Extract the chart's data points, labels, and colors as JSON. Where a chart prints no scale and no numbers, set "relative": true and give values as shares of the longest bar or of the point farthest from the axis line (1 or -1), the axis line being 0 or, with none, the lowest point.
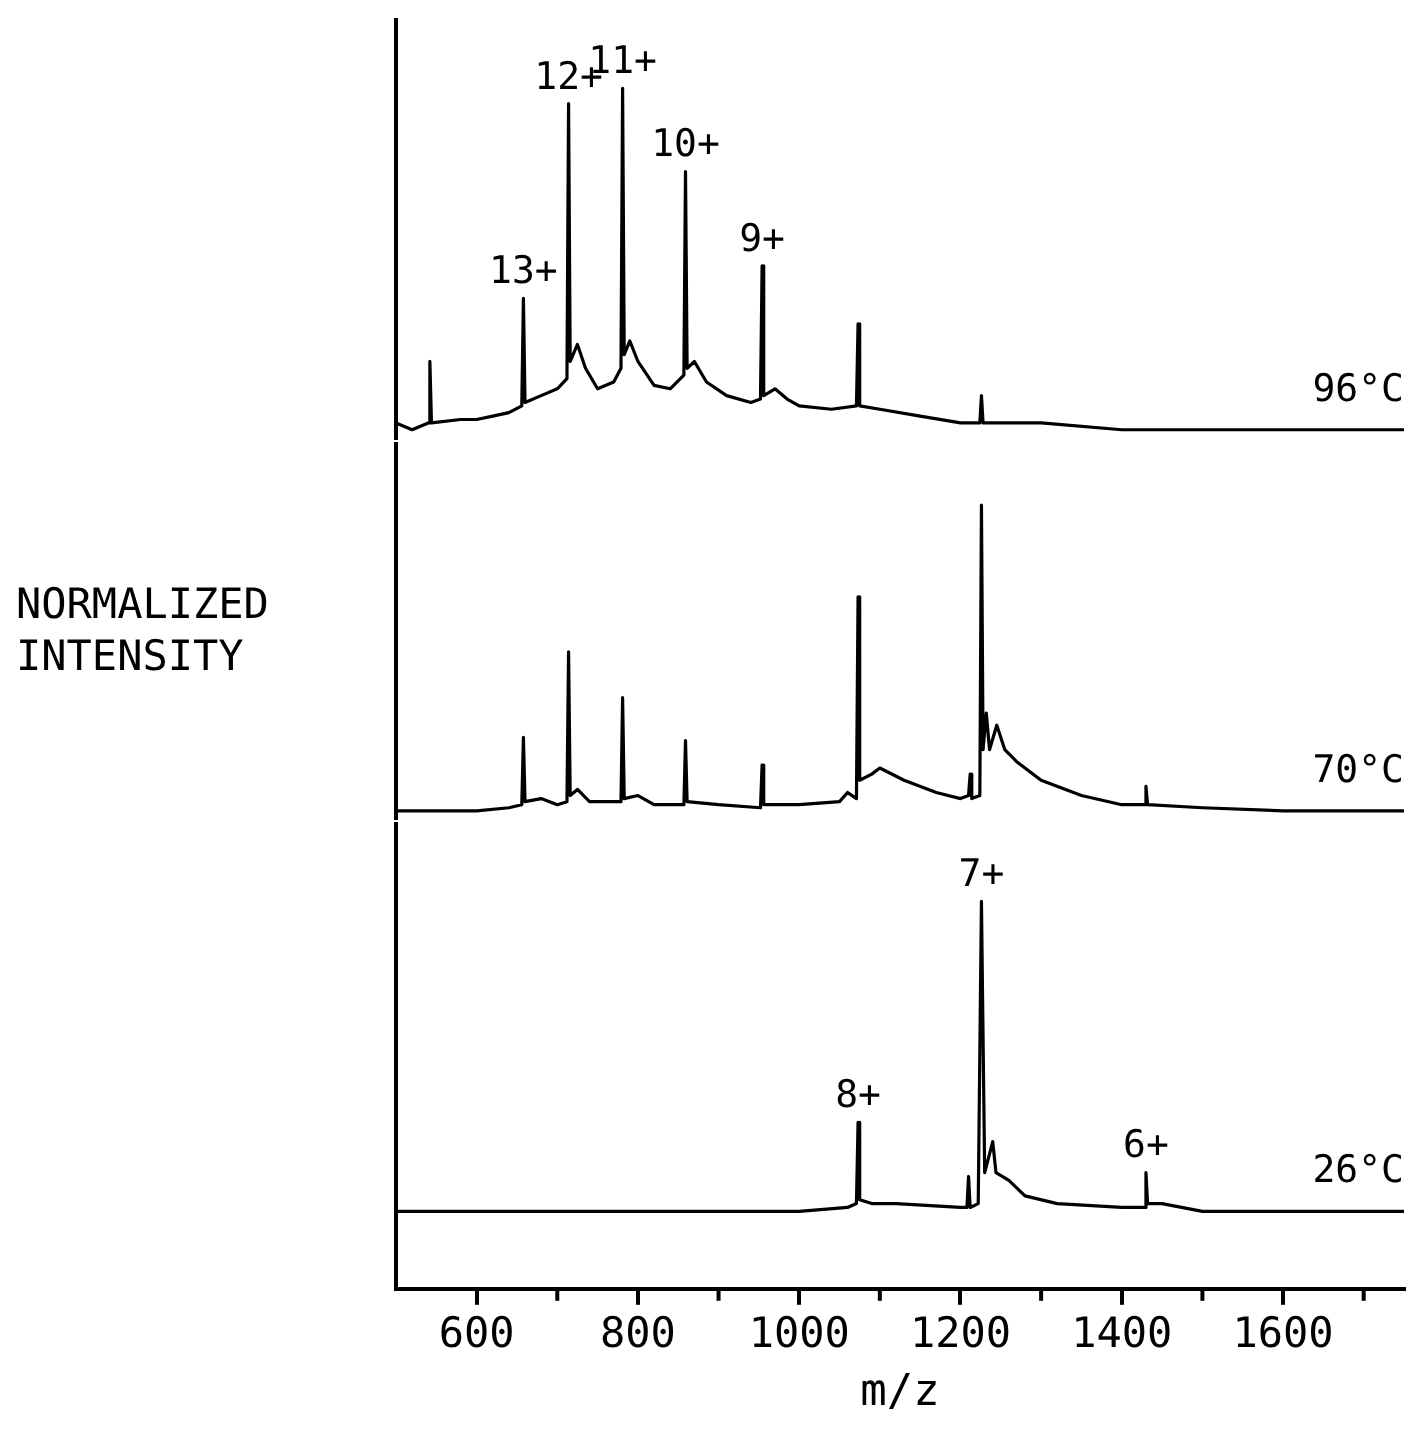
{
  "chart_data": [
    {
      "type": "line",
      "relative": true,
      "xlim": [
        500,
        1750
      ],
      "tick_labels": false,
      "marker": "none",
      "series": [
        {
          "name": "96°C",
          "color": "#000000",
          "x": [
            500,
            520,
            540,
            542,
            544,
            580,
            600,
            620,
            640,
            656,
            658,
            660,
            680,
            700,
            712,
            714,
            716,
            725,
            735,
            750,
            770,
            779,
            781,
            783,
            790,
            800,
            820,
            840,
            857,
            859,
            861,
            870,
            885,
            910,
            940,
            952,
            954,
            956,
            970,
            985,
            1000,
            1040,
            1071,
            1073,
            1075,
            1100,
            1150,
            1200,
            1224,
            1226,
            1228,
            1300,
            1400,
            1500,
            1600,
            1750
          ],
          "values": [
            0.02,
            0.0,
            0.02,
            0.2,
            0.02,
            0.03,
            0.03,
            0.04,
            0.05,
            0.07,
            0.385,
            0.08,
            0.1,
            0.12,
            0.15,
            0.955,
            0.2,
            0.25,
            0.18,
            0.12,
            0.14,
            0.18,
            1.0,
            0.22,
            0.26,
            0.2,
            0.13,
            0.12,
            0.16,
            0.756,
            0.18,
            0.2,
            0.14,
            0.1,
            0.08,
            0.09,
            0.48,
            0.1,
            0.12,
            0.09,
            0.07,
            0.06,
            0.07,
            0.31,
            0.07,
            0.06,
            0.04,
            0.02,
            0.02,
            0.1,
            0.02,
            0.02,
            0.0,
            0.0,
            0.0,
            0.0
          ]
        }
      ],
      "annotations": [
        {
          "text": "13+",
          "x": 658,
          "y": 0.385
        },
        {
          "text": "12+",
          "x": 714,
          "y": 0.955
        },
        {
          "text": "11+",
          "x": 781,
          "y": 1.0
        },
        {
          "text": "10+",
          "x": 859,
          "y": 0.756
        },
        {
          "text": "9+",
          "x": 954,
          "y": 0.48
        }
      ]
    },
    {
      "type": "line",
      "relative": true,
      "xlim": [
        500,
        1750
      ],
      "tick_labels": false,
      "marker": "none",
      "ylabel": "NORMALIZED INTENSITY",
      "series": [
        {
          "name": "70°C",
          "color": "#000000",
          "x": [
            500,
            600,
            640,
            656,
            658,
            660,
            680,
            700,
            712,
            714,
            716,
            725,
            740,
            779,
            781,
            783,
            800,
            820,
            857,
            859,
            861,
            900,
            952,
            954,
            956,
            1000,
            1050,
            1060,
            1071,
            1073,
            1075,
            1090,
            1100,
            1130,
            1170,
            1200,
            1210,
            1212,
            1214,
            1224,
            1226,
            1228,
            1232,
            1236,
            1245,
            1255,
            1270,
            1300,
            1350,
            1400,
            1428,
            1430,
            1432,
            1500,
            1600,
            1750
          ],
          "values": [
            0.0,
            0.0,
            0.01,
            0.02,
            0.24,
            0.03,
            0.04,
            0.02,
            0.03,
            0.52,
            0.05,
            0.07,
            0.03,
            0.03,
            0.37,
            0.04,
            0.05,
            0.02,
            0.02,
            0.23,
            0.03,
            0.02,
            0.01,
            0.15,
            0.02,
            0.02,
            0.03,
            0.06,
            0.04,
            0.7,
            0.1,
            0.12,
            0.14,
            0.1,
            0.06,
            0.04,
            0.05,
            0.12,
            0.04,
            0.05,
            1.0,
            0.2,
            0.32,
            0.2,
            0.28,
            0.2,
            0.16,
            0.1,
            0.05,
            0.02,
            0.02,
            0.08,
            0.02,
            0.01,
            0.0,
            0.0
          ]
        }
      ]
    },
    {
      "type": "line",
      "relative": true,
      "xlim": [
        500,
        1750
      ],
      "tick_labels": "x",
      "marker": "none",
      "xlabel": "m/z",
      "xticks": [
        600,
        {
          "value": 700,
          "label": null
        },
        800,
        {
          "value": 900,
          "label": null
        },
        1000,
        {
          "value": 1100,
          "label": null
        },
        1200,
        {
          "value": 1300,
          "label": null
        },
        1400,
        {
          "value": 1500,
          "label": null
        },
        1600,
        {
          "value": 1700,
          "label": null
        }
      ],
      "series": [
        {
          "name": "26°C",
          "color": "#000000",
          "x": [
            500,
            800,
            1000,
            1060,
            1071,
            1073,
            1075,
            1090,
            1120,
            1200,
            1208,
            1210,
            1212,
            1222,
            1226,
            1230,
            1240,
            1244,
            1260,
            1280,
            1320,
            1400,
            1428,
            1430,
            1432,
            1450,
            1500,
            1750
          ],
          "values": [
            0.2,
            0.2,
            0.2,
            0.21,
            0.22,
            0.43,
            0.23,
            0.22,
            0.22,
            0.21,
            0.21,
            0.29,
            0.21,
            0.22,
            1.0,
            0.3,
            0.38,
            0.3,
            0.28,
            0.24,
            0.22,
            0.21,
            0.21,
            0.3,
            0.22,
            0.22,
            0.2,
            0.2
          ]
        }
      ],
      "annotations": [
        {
          "text": "8+",
          "x": 1073,
          "y": 0.43
        },
        {
          "text": "7+",
          "x": 1226,
          "y": 1.0
        },
        {
          "text": "6+",
          "x": 1430,
          "y": 0.3
        }
      ]
    }
  ]
}
